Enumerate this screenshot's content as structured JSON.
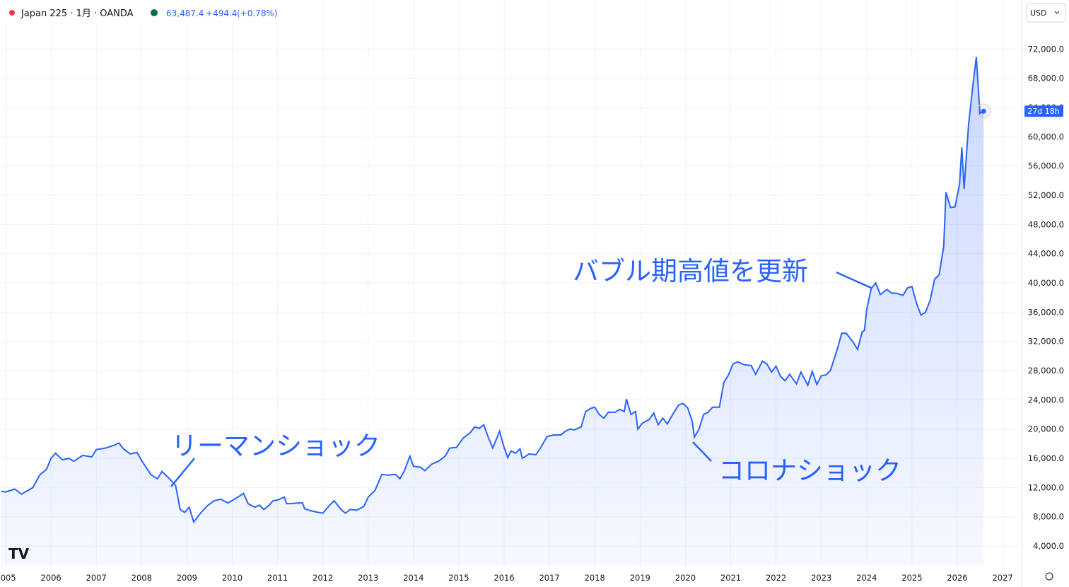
{
  "header": {
    "symbol": "Japan 225 · 1月 · OANDA",
    "last": "63,487.4",
    "change": "+494.4",
    "change_pct": "(+0.78%)",
    "currency": "USD",
    "countdown": "27d 18h"
  },
  "chart_data": {
    "type": "line",
    "color": "#2962ff",
    "grid": true,
    "annotations": [
      "リーマンショック",
      "コロナショック",
      "バブル期高値を更新"
    ],
    "xlim": [
      2004.875,
      2027.42
    ],
    "xticks": [
      2005,
      2006,
      2007,
      2008,
      2009,
      2010,
      2011,
      2012,
      2013,
      2014,
      2015,
      2016,
      2017,
      2018,
      2019,
      2020,
      2021,
      2022,
      2023,
      2024,
      2025,
      2026,
      2027
    ],
    "ylim": [
      1300,
      78700
    ],
    "yticks": [
      {
        "value": 4000,
        "label": "4,000.0"
      },
      {
        "value": 8000,
        "label": "8,000.0"
      },
      {
        "value": 12000,
        "label": "12,000.0"
      },
      {
        "value": 16000,
        "label": "16,000.0"
      },
      {
        "value": 20000,
        "label": "20,000.0"
      },
      {
        "value": 24000,
        "label": "24,000.0"
      },
      {
        "value": 28000,
        "label": "28,000.0"
      },
      {
        "value": 32000,
        "label": "32,000.0"
      },
      {
        "value": 36000,
        "label": "36,000.0"
      },
      {
        "value": 40000,
        "label": "40,000.0"
      },
      {
        "value": 44000,
        "label": "44,000.0"
      },
      {
        "value": 48000,
        "label": "48,000.0"
      },
      {
        "value": 52000,
        "label": "52,000.0"
      },
      {
        "value": 56000,
        "label": "56,000.0"
      },
      {
        "value": 60000,
        "label": "60,000.0"
      },
      {
        "value": 64000,
        "label": "64,000.0"
      },
      {
        "value": 68000,
        "label": "68,000.0"
      },
      {
        "value": 72000,
        "label": "72,000.0"
      }
    ],
    "series": [
      {
        "name": "Japan 225",
        "color": "#2962ff",
        "x": [
          2004.9,
          2005.0,
          2005.2,
          2005.35,
          2005.6,
          2005.75,
          2005.9,
          2006.0,
          2006.1,
          2006.25,
          2006.4,
          2006.5,
          2006.7,
          2006.9,
          2007.0,
          2007.2,
          2007.4,
          2007.5,
          2007.6,
          2007.75,
          2007.9,
          2008.0,
          2008.2,
          2008.35,
          2008.45,
          2008.6,
          2008.75,
          2008.85,
          2008.95,
          2009.05,
          2009.15,
          2009.3,
          2009.45,
          2009.6,
          2009.75,
          2009.9,
          2010.05,
          2010.25,
          2010.35,
          2010.5,
          2010.6,
          2010.7,
          2010.8,
          2010.9,
          2011.0,
          2011.15,
          2011.2,
          2011.3,
          2011.45,
          2011.55,
          2011.6,
          2011.75,
          2011.9,
          2012.0,
          2012.15,
          2012.25,
          2012.4,
          2012.5,
          2012.6,
          2012.75,
          2012.9,
          2013.0,
          2013.15,
          2013.3,
          2013.45,
          2013.6,
          2013.7,
          2013.8,
          2013.92,
          2014.0,
          2014.15,
          2014.25,
          2014.4,
          2014.55,
          2014.7,
          2014.8,
          2014.95,
          2015.1,
          2015.25,
          2015.35,
          2015.45,
          2015.55,
          2015.65,
          2015.75,
          2015.9,
          2016.0,
          2016.08,
          2016.15,
          2016.25,
          2016.35,
          2016.4,
          2016.55,
          2016.7,
          2016.8,
          2016.95,
          2017.1,
          2017.25,
          2017.35,
          2017.45,
          2017.55,
          2017.7,
          2017.8,
          2017.9,
          2018.0,
          2018.1,
          2018.2,
          2018.3,
          2018.45,
          2018.55,
          2018.65,
          2018.7,
          2018.8,
          2018.9,
          2018.95,
          2019.05,
          2019.2,
          2019.3,
          2019.4,
          2019.5,
          2019.6,
          2019.7,
          2019.85,
          2019.95,
          2020.05,
          2020.15,
          2020.2,
          2020.3,
          2020.4,
          2020.5,
          2020.6,
          2020.75,
          2020.85,
          2020.95,
          2021.05,
          2021.15,
          2021.3,
          2021.45,
          2021.55,
          2021.7,
          2021.8,
          2021.9,
          2022.0,
          2022.1,
          2022.2,
          2022.3,
          2022.45,
          2022.55,
          2022.7,
          2022.8,
          2022.9,
          2023.0,
          2023.1,
          2023.2,
          2023.35,
          2023.45,
          2023.55,
          2023.7,
          2023.8,
          2023.9,
          2023.95,
          2024.0,
          2024.1,
          2024.2,
          2024.3,
          2024.45,
          2024.55,
          2024.65,
          2024.8,
          2024.9,
          2025.0,
          2025.1,
          2025.2,
          2025.3,
          2025.4,
          2025.5,
          2025.6,
          2025.7,
          2025.75,
          2025.85,
          2025.95,
          2026.05,
          2026.1,
          2026.15,
          2026.25,
          2026.35,
          2026.42,
          2026.5,
          2026.58
        ],
        "values": [
          11500,
          11400,
          11800,
          11100,
          12000,
          13700,
          14500,
          16000,
          16700,
          15800,
          16000,
          15600,
          16400,
          16200,
          17200,
          17400,
          17800,
          18100,
          17300,
          16600,
          16800,
          15700,
          13800,
          13200,
          14200,
          13300,
          12300,
          9000,
          8600,
          9300,
          7300,
          8500,
          9500,
          10200,
          10400,
          9900,
          10400,
          11200,
          9800,
          9300,
          9600,
          9000,
          9500,
          10200,
          10300,
          10700,
          9800,
          9800,
          9900,
          9900,
          9100,
          8800,
          8600,
          8500,
          9600,
          10200,
          9000,
          8500,
          9000,
          8900,
          9400,
          10700,
          11600,
          13800,
          13700,
          13800,
          13200,
          14300,
          16300,
          14900,
          14800,
          14300,
          15200,
          15600,
          16300,
          17400,
          17500,
          18800,
          19500,
          20300,
          20100,
          20600,
          18900,
          17400,
          19700,
          17500,
          16100,
          17000,
          16700,
          17300,
          16000,
          16600,
          16500,
          17400,
          19000,
          19200,
          19200,
          19700,
          20000,
          19900,
          20300,
          22400,
          22800,
          23000,
          22000,
          21500,
          22300,
          22300,
          22700,
          22400,
          24100,
          22000,
          22400,
          20000,
          20800,
          21300,
          22200,
          20600,
          21500,
          20700,
          21800,
          23300,
          23500,
          22900,
          21100,
          18900,
          20000,
          22000,
          22300,
          23000,
          23000,
          26400,
          27400,
          28900,
          29200,
          28800,
          28700,
          27500,
          29300,
          28900,
          27800,
          28600,
          27200,
          26600,
          27500,
          26200,
          27800,
          26000,
          27900,
          26100,
          27300,
          27400,
          28000,
          30900,
          33100,
          33100,
          31900,
          30900,
          33300,
          33500,
          36300,
          39200,
          40000,
          38400,
          39100,
          38600,
          38600,
          38300,
          39300,
          39500,
          37200,
          35600,
          36000,
          37600,
          40500,
          41100,
          45000,
          52400,
          50300,
          50400,
          53500,
          58550,
          52850,
          61700,
          67300,
          70900,
          63200,
          63487.4
        ]
      }
    ]
  }
}
